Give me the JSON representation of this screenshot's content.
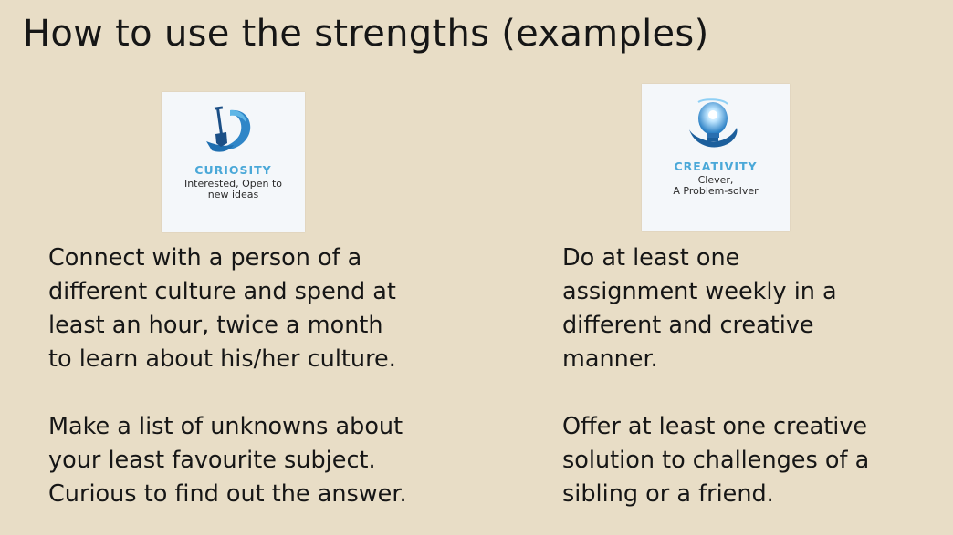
{
  "slide": {
    "title": "How to use the strengths (examples)",
    "cards": {
      "curiosity": {
        "icon": "shovel-ribbon-icon",
        "accent_color": "#4aa8d8",
        "heading": "CURIOSITY",
        "subtitle_lines": [
          "Interested, Open to",
          "new ideas"
        ]
      },
      "creativity": {
        "icon": "lightbulb-icon",
        "accent_color": "#4aa8d8",
        "heading": "CREATIVITY",
        "subtitle_lines": [
          "Clever,",
          "A Problem-solver"
        ]
      }
    },
    "left_column": {
      "paragraphs": [
        {
          "lines": [
            "Connect with a person of a",
            "different culture and spend at",
            "least an hour, twice a month",
            "to learn about his/her culture."
          ]
        },
        {
          "lines": [
            "Make a list of unknowns about",
            "your least favourite subject.",
            "Curious to find out the answer."
          ]
        }
      ]
    },
    "right_column": {
      "paragraphs": [
        {
          "lines": [
            "Do at least one",
            "assignment weekly in a",
            "different and creative",
            "manner."
          ]
        },
        {
          "lines": [
            "Offer at least one creative",
            "solution to challenges of a",
            "sibling or a friend."
          ]
        }
      ]
    }
  }
}
